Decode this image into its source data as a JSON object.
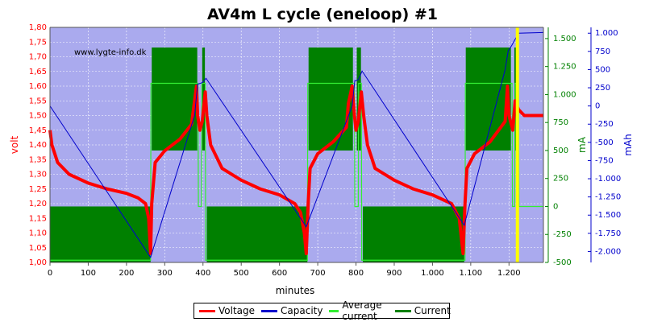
{
  "chart_data": {
    "type": "line",
    "title": "AV4m L cycle (eneloop) #1",
    "watermark": "www.lygte-info.dk",
    "xlabel": "minutes",
    "ylabel_left": "volt",
    "ylabel_mid": "mA",
    "ylabel_right": "mAh",
    "xlim": [
      0,
      1290
    ],
    "xticks": [
      0,
      100,
      200,
      300,
      400,
      500,
      600,
      700,
      800,
      900,
      1000,
      1100,
      1200
    ],
    "xtick_labels": [
      "0",
      "100",
      "200",
      "300",
      "400",
      "500",
      "600",
      "700",
      "800",
      "900",
      "1.000",
      "1.100",
      "1.200"
    ],
    "volt_axis": {
      "range": [
        1.0,
        1.8
      ],
      "ticks": [
        "1,00",
        "1,05",
        "1,10",
        "1,15",
        "1,20",
        "1,25",
        "1,30",
        "1,35",
        "1,40",
        "1,45",
        "1,50",
        "1,55",
        "1,60",
        "1,65",
        "1,70",
        "1,75",
        "1,80"
      ],
      "color": "#ff0000"
    },
    "ma_axis": {
      "range": [
        -500,
        1600
      ],
      "ticks": [
        -500,
        -250,
        0,
        250,
        500,
        750,
        1000,
        1250,
        1500
      ],
      "tick_labels": [
        "-500",
        "-250",
        "0",
        "250",
        "500",
        "750",
        "1.000",
        "1.250",
        "1.500"
      ],
      "color": "#008000"
    },
    "mah_axis": {
      "range": [
        -2150,
        1080
      ],
      "ticks": [
        -2000,
        -1750,
        -1500,
        -1250,
        -1000,
        -750,
        -500,
        -250,
        0,
        250,
        500,
        750,
        1000
      ],
      "tick_labels": [
        "-2.000",
        "-1.750",
        "-1.500",
        "-1.250",
        "-1.000",
        "-750",
        "-500",
        "-250",
        "0",
        "250",
        "500",
        "750",
        "1.000"
      ],
      "color": "#0000cc"
    },
    "series": [
      {
        "name": "Voltage",
        "color": "#ff0000",
        "x": [
          0,
          5,
          20,
          50,
          100,
          150,
          200,
          230,
          250,
          258,
          263,
          266,
          275,
          300,
          340,
          370,
          378,
          383,
          386,
          392,
          398,
          406,
          410,
          420,
          450,
          500,
          550,
          600,
          640,
          655,
          665,
          670,
          675,
          680,
          700,
          740,
          775,
          780,
          790,
          796,
          800,
          806,
          814,
          820,
          830,
          850,
          900,
          950,
          1000,
          1050,
          1070,
          1080,
          1085,
          1090,
          1110,
          1150,
          1190,
          1196,
          1200,
          1210,
          1216,
          1225,
          1240,
          1290
        ],
        "y": [
          1.45,
          1.4,
          1.34,
          1.3,
          1.27,
          1.25,
          1.235,
          1.22,
          1.2,
          1.15,
          1.03,
          1.2,
          1.34,
          1.38,
          1.42,
          1.47,
          1.55,
          1.6,
          1.5,
          1.45,
          1.48,
          1.58,
          1.5,
          1.4,
          1.32,
          1.28,
          1.25,
          1.23,
          1.2,
          1.17,
          1.1,
          1.03,
          1.2,
          1.32,
          1.37,
          1.41,
          1.46,
          1.54,
          1.6,
          1.5,
          1.45,
          1.48,
          1.58,
          1.5,
          1.4,
          1.32,
          1.28,
          1.25,
          1.23,
          1.2,
          1.15,
          1.03,
          1.2,
          1.32,
          1.37,
          1.41,
          1.48,
          1.6,
          1.5,
          1.45,
          1.55,
          1.52,
          1.5,
          1.5
        ]
      },
      {
        "name": "Capacity",
        "color": "#0000cc",
        "x": [
          0,
          263,
          378,
          386,
          398,
          408,
          670,
          790,
          797,
          806,
          816,
          1083,
          1190,
          1198,
          1207,
          1225,
          1290
        ],
        "y": [
          0,
          -2080,
          -130,
          300,
          320,
          380,
          -1660,
          0,
          350,
          360,
          480,
          -1640,
          500,
          760,
          830,
          1000,
          1010
        ]
      },
      {
        "name": "Average current",
        "color": "#33ee33",
        "x": [
          0,
          263,
          264,
          387,
          388,
          396,
          397,
          406,
          407,
          673,
          674,
          796,
          797,
          806,
          807,
          814,
          815,
          1085,
          1086,
          1208,
          1209,
          1215,
          1216,
          1225,
          1226,
          1290
        ],
        "y": [
          -480,
          -480,
          1100,
          1100,
          0,
          0,
          1100,
          1100,
          -480,
          -480,
          1100,
          1100,
          0,
          0,
          1100,
          1100,
          -480,
          -480,
          1100,
          1100,
          0,
          0,
          1100,
          1100,
          0,
          0
        ]
      },
      {
        "name": "Current",
        "color": "#008000",
        "blocks": [
          {
            "x": [
              0,
              263
            ],
            "y": [
              -500,
              0
            ]
          },
          {
            "x": [
              266,
              385
            ],
            "y": [
              500,
              1420
            ]
          },
          {
            "x": [
              398,
              405
            ],
            "y": [
              500,
              1420
            ]
          },
          {
            "x": [
              410,
              673
            ],
            "y": [
              -500,
              0
            ]
          },
          {
            "x": [
              676,
              792
            ],
            "y": [
              500,
              1420
            ]
          },
          {
            "x": [
              802,
              813
            ],
            "y": [
              500,
              1420
            ]
          },
          {
            "x": [
              818,
              1083
            ],
            "y": [
              -500,
              0
            ]
          },
          {
            "x": [
              1087,
              1205
            ],
            "y": [
              500,
              1420
            ]
          },
          {
            "x": [
              1214,
              1220
            ],
            "y": [
              500,
              1420
            ]
          }
        ]
      }
    ],
    "marker": {
      "x": 1222,
      "color": "#ffff00"
    },
    "legend": [
      "Voltage",
      "Capacity",
      "Average current",
      "Current"
    ],
    "grid": true,
    "legend_position": "bottom-center"
  }
}
